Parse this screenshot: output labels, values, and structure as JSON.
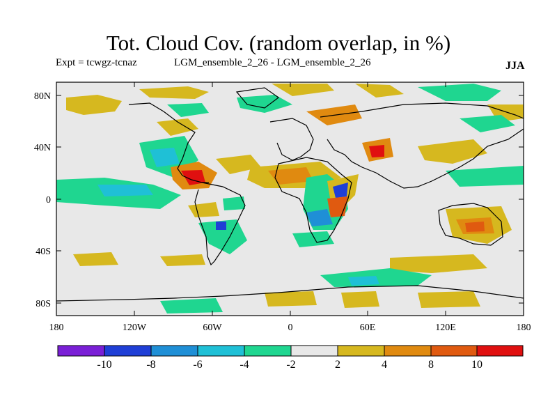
{
  "title": "Tot. Cloud Cov. (random overlap, in %)",
  "expt_label": "Expt = tcwgz-tcnaz",
  "subtitle": "LGM_ensemble_2_26 - LGM_ensemble_2_26",
  "season": "JJA",
  "map": {
    "projection": "cylindrical",
    "background_color": "#e8e8e8",
    "lat_ticks": [
      "80N",
      "40N",
      "0",
      "40S",
      "80S"
    ],
    "lon_ticks": [
      "180",
      "120W",
      "60W",
      "0",
      "60E",
      "120E",
      "180"
    ]
  },
  "colorbar": {
    "labels": [
      "-10",
      "-8",
      "-6",
      "-4",
      "-2",
      "2",
      "4",
      "8",
      "10"
    ],
    "colors": [
      "#7a1fd6",
      "#1f3fd6",
      "#1f8fd6",
      "#1fc0d6",
      "#1fd690",
      "#e8e8e8",
      "#d6b81f",
      "#e08a10",
      "#e05a10",
      "#e01010"
    ]
  },
  "chart_data": {
    "type": "heatmap",
    "title": "Tot. Cloud Cov. (random overlap, in %)",
    "levels": [
      -10,
      -8,
      -6,
      -4,
      -2,
      2,
      4,
      8,
      10
    ],
    "xlim": [
      -180,
      180
    ],
    "ylim": [
      -90,
      90
    ]
  }
}
